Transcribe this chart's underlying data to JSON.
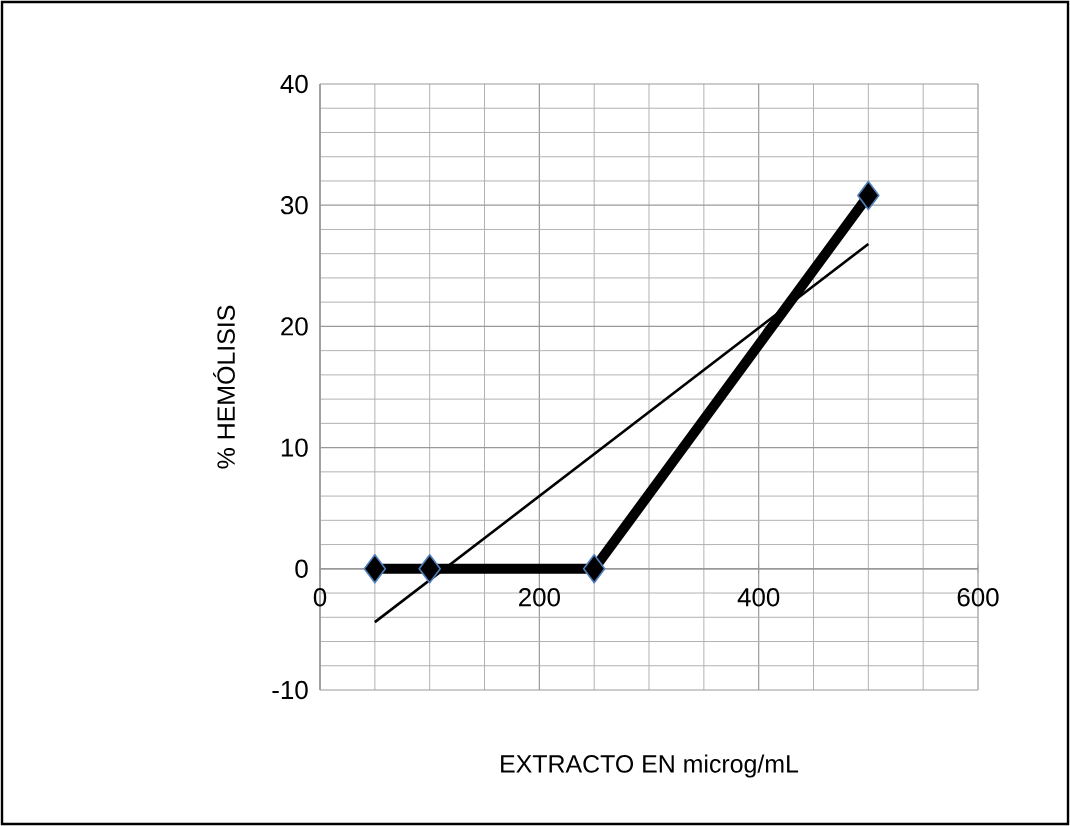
{
  "chart_data": {
    "type": "line",
    "xlabel": "EXTRACTO EN microg/mL",
    "ylabel": "% HEMÓLISIS",
    "xlim": [
      0,
      600
    ],
    "ylim": [
      -10,
      40
    ],
    "xticks": [
      0,
      200,
      400,
      600
    ],
    "yticks": [
      -10,
      0,
      10,
      20,
      30,
      40
    ],
    "grid": true,
    "series": [
      {
        "color": "#000000",
        "x": [
          50,
          100,
          250,
          500
        ],
        "values": [
          0,
          0,
          0,
          30.8
        ],
        "marker": "diamond",
        "line_style": "solid"
      },
      {
        "type": "line",
        "color": "#000000",
        "x": [
          50,
          500
        ],
        "values": [
          -4.4,
          26.8
        ],
        "marker": "none",
        "line_style": "solid"
      }
    ]
  }
}
